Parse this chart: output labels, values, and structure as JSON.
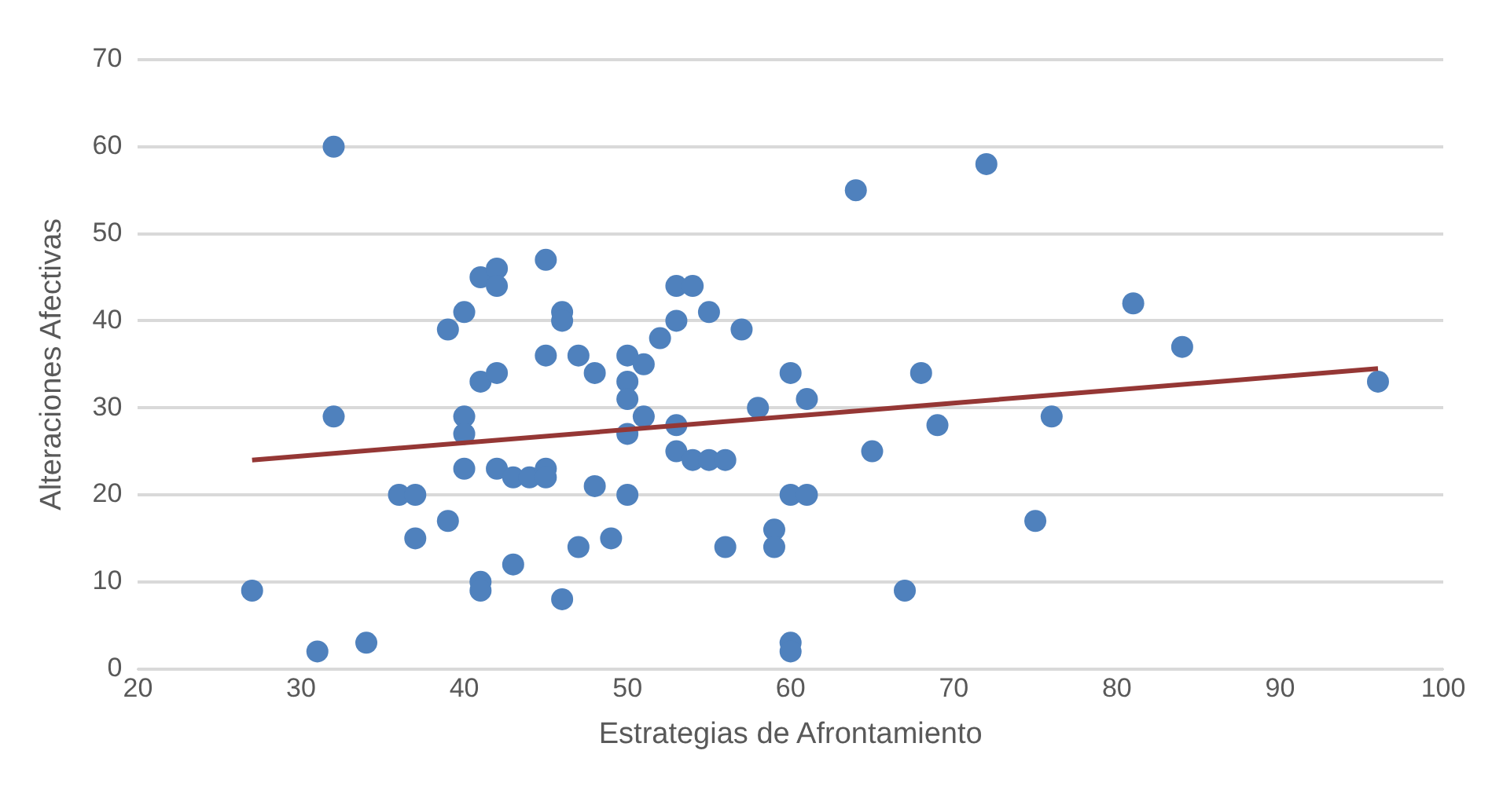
{
  "chart_data": {
    "type": "scatter",
    "xlabel": "Estrategias de Afrontamiento",
    "ylabel": "Alteraciones Afectivas",
    "xlim": [
      20,
      100
    ],
    "xticks": [
      20,
      30,
      40,
      50,
      60,
      70,
      80,
      90,
      100
    ],
    "ylim": [
      0,
      70
    ],
    "yticks": [
      0,
      10,
      20,
      30,
      40,
      50,
      60,
      70
    ],
    "grid": "y",
    "legend": false,
    "series": [
      {
        "marker": "circle",
        "color": "#4f81bd",
        "x": [
          27,
          31,
          32,
          32,
          34,
          36,
          37,
          37,
          39,
          39,
          40,
          40,
          40,
          40,
          41,
          41,
          41,
          41,
          42,
          42,
          42,
          42,
          43,
          43,
          44,
          45,
          45,
          45,
          45,
          46,
          46,
          46,
          47,
          47,
          48,
          48,
          49,
          50,
          50,
          50,
          50,
          50,
          51,
          51,
          52,
          53,
          53,
          53,
          53,
          54,
          54,
          55,
          55,
          56,
          56,
          57,
          58,
          59,
          59,
          60,
          60,
          60,
          60,
          61,
          61,
          64,
          65,
          67,
          68,
          69,
          72,
          75,
          76,
          81,
          84,
          96
        ],
        "values": [
          9,
          2,
          60,
          29,
          3,
          20,
          20,
          15,
          39,
          17,
          41,
          29,
          27,
          23,
          45,
          33,
          10,
          9,
          46,
          44,
          34,
          23,
          22,
          12,
          22,
          47,
          36,
          23,
          22,
          41,
          40,
          8,
          36,
          14,
          34,
          21,
          15,
          36,
          33,
          31,
          27,
          20,
          35,
          29,
          38,
          44,
          40,
          28,
          25,
          44,
          24,
          41,
          24,
          24,
          14,
          39,
          30,
          16,
          14,
          34,
          20,
          3,
          2,
          31,
          20,
          55,
          25,
          9,
          34,
          28,
          58,
          17,
          29,
          42,
          37,
          33
        ]
      },
      {
        "type": "line",
        "marker": "none",
        "color": "#953735",
        "x": [
          27,
          96
        ],
        "values": [
          24,
          34.5
        ]
      }
    ]
  }
}
